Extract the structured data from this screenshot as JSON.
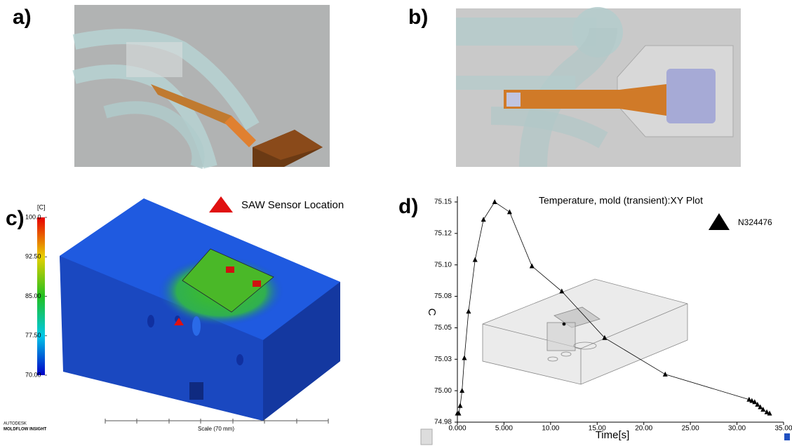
{
  "panels": {
    "a": {
      "label": "a)"
    },
    "b": {
      "label": "b)"
    },
    "c": {
      "label": "c)",
      "legend": "SAW Sensor Location",
      "colorbar": {
        "unit": "[C]",
        "ticks": [
          {
            "value": 100,
            "label": "100.0"
          },
          {
            "value": 92.5,
            "label": "92.50"
          },
          {
            "value": 85,
            "label": "85.00"
          },
          {
            "value": 77.5,
            "label": "77.50"
          },
          {
            "value": 70,
            "label": "70.00"
          }
        ]
      },
      "scale_label": "Scale (70 mm)",
      "brand": [
        "AUTODESK",
        "MOLDFLOW INSIGHT"
      ]
    },
    "d": {
      "label": "d)"
    }
  },
  "chart_data": {
    "type": "line",
    "title": "Temperature, mold (transient):XY Plot",
    "xlabel": "Time[s]",
    "ylabel": "C",
    "x": [
      0,
      0.15,
      0.3,
      0.5,
      0.75,
      1.2,
      1.9,
      2.8,
      4.0,
      5.6,
      8.0,
      11.2,
      15.8,
      22.3,
      31.3,
      31.6,
      31.9,
      32.2,
      32.5,
      32.8,
      33.2,
      33.5
    ],
    "series": [
      {
        "name": "N324476",
        "color": "#000000",
        "values": [
          74.982,
          74.982,
          74.988,
          75.0,
          75.026,
          75.063,
          75.104,
          75.136,
          75.15,
          75.142,
          75.099,
          75.079,
          75.042,
          75.013,
          74.993,
          74.992,
          74.991,
          74.989,
          74.987,
          74.985,
          74.983,
          74.982
        ]
      }
    ],
    "xlim": [
      0,
      35
    ],
    "ylim": [
      74.975,
      75.15
    ],
    "xticks": [
      {
        "value": 0,
        "label": "0.000"
      },
      {
        "value": 5,
        "label": "5.000"
      },
      {
        "value": 10,
        "label": "10.00"
      },
      {
        "value": 15,
        "label": "15.00"
      },
      {
        "value": 20,
        "label": "20.00"
      },
      {
        "value": 25,
        "label": "25.00"
      },
      {
        "value": 30,
        "label": "30.00"
      },
      {
        "value": 35,
        "label": "35.00"
      }
    ],
    "yticks": [
      {
        "value": 74.975,
        "label": "74.98"
      },
      {
        "value": 75.0,
        "label": "75.00"
      },
      {
        "value": 75.025,
        "label": "75.03"
      },
      {
        "value": 75.05,
        "label": "75.05"
      },
      {
        "value": 75.075,
        "label": "75.08"
      },
      {
        "value": 75.1,
        "label": "75.10"
      },
      {
        "value": 75.125,
        "label": "75.12"
      },
      {
        "value": 75.15,
        "label": "75.15"
      }
    ],
    "legend": "upper right"
  }
}
